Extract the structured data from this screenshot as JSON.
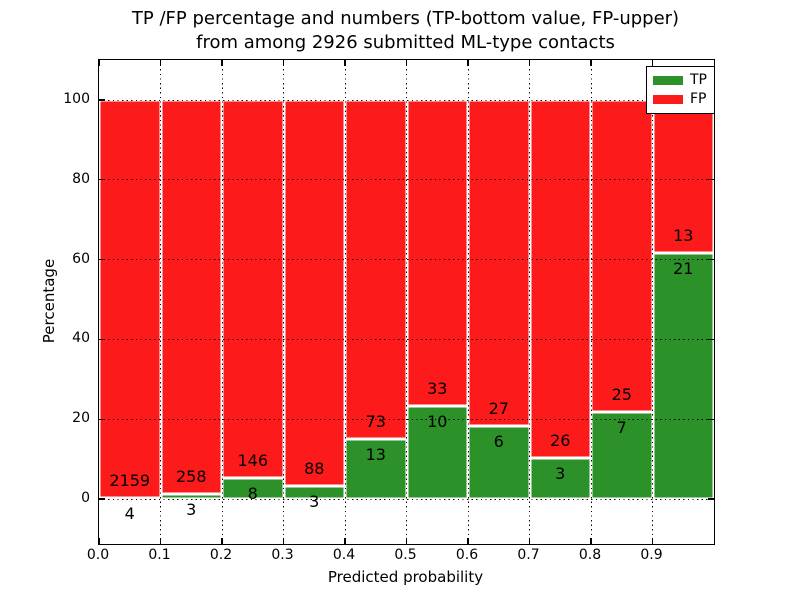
{
  "figure": {
    "title_line1": "TP /FP percentage and numbers (TP-bottom value, FP-upper)",
    "title_line2": "from among 2926 submitted ML-type contacts"
  },
  "chart_data": {
    "type": "bar",
    "stacked": true,
    "normalized_to_percent": true,
    "title": "TP /FP percentage and numbers (TP-bottom value, FP-upper) from among 2926 submitted ML-type contacts",
    "xlabel": "Predicted probability",
    "ylabel": "Percentage",
    "total_contacts": 2926,
    "categories": [
      "0.0-0.1",
      "0.1-0.2",
      "0.2-0.3",
      "0.3-0.4",
      "0.4-0.5",
      "0.5-0.6",
      "0.6-0.7",
      "0.7-0.8",
      "0.8-0.9",
      "0.9-1.0"
    ],
    "series": [
      {
        "name": "TP",
        "color": "#2b9128",
        "counts": [
          4,
          3,
          8,
          3,
          13,
          10,
          6,
          3,
          7,
          21
        ]
      },
      {
        "name": "FP",
        "color": "#fd1a1a",
        "counts": [
          2159,
          258,
          146,
          88,
          73,
          33,
          27,
          26,
          25,
          13
        ]
      }
    ],
    "tp_percent_of_bin": [
      0.18,
      1.15,
      5.19,
      3.3,
      15.12,
      23.26,
      18.18,
      10.34,
      21.88,
      61.76
    ],
    "bar_edge_color": "#ffffff",
    "xticks": {
      "values": [
        0.0,
        0.1,
        0.2,
        0.3,
        0.4,
        0.5,
        0.6,
        0.7,
        0.8,
        0.9
      ],
      "labels": [
        "0.0",
        "0.1",
        "0.2",
        "0.3",
        "0.4",
        "0.5",
        "0.6",
        "0.7",
        "0.8",
        "0.9"
      ]
    },
    "yticks": {
      "values": [
        0,
        20,
        40,
        60,
        80,
        100
      ],
      "labels": [
        "0",
        "20",
        "40",
        "60",
        "80",
        "100"
      ]
    },
    "xlim": [
      0.0,
      1.0
    ],
    "ylim": [
      -11.3,
      110
    ],
    "grid": "dotted black, drawn above bars",
    "legend_position": "upper right"
  }
}
